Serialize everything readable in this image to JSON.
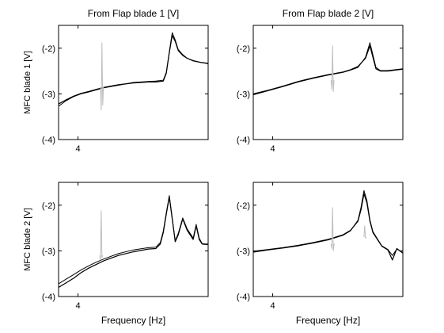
{
  "figure": {
    "background": "#ffffff",
    "series_colors": {
      "measured": "#000000",
      "model": "#000000",
      "reference": "#bdbdbd"
    }
  },
  "chart_data": [
    {
      "type": "line",
      "title": "From Flap blade 1 [V]",
      "xlabel": "",
      "ylabel": "MFC blade 1 [V]",
      "ylim": [
        -4,
        -1.5
      ],
      "xlim": [
        0,
        10
      ],
      "yticks": [
        {
          "v": -2,
          "label": "(-2)"
        },
        {
          "v": -3,
          "label": "(-3)"
        },
        {
          "v": -4,
          "label": "(-4)"
        }
      ],
      "xticks": [
        {
          "v": 1.3,
          "label": "4"
        }
      ],
      "grid": false,
      "series": [
        {
          "color": "#000000",
          "width": 1.2,
          "x": [
            0,
            0.5,
            1,
            1.5,
            2,
            3,
            4,
            5,
            6,
            6.5,
            7,
            7.2,
            7.4,
            7.6,
            7.8,
            8,
            8.3,
            8.6,
            9,
            9.5,
            10
          ],
          "y": [
            -3.22,
            -3.13,
            -3.05,
            -2.99,
            -2.95,
            -2.86,
            -2.8,
            -2.76,
            -2.74,
            -2.74,
            -2.72,
            -2.55,
            -2.1,
            -1.72,
            -1.85,
            -2.05,
            -2.16,
            -2.22,
            -2.27,
            -2.31,
            -2.33
          ]
        },
        {
          "color": "#000000",
          "width": 1,
          "x": [
            0,
            0.5,
            1,
            1.5,
            2,
            3,
            4,
            5,
            6,
            6.5,
            7,
            7.2,
            7.4,
            7.6,
            7.8,
            8,
            8.3,
            8.6,
            9,
            9.5,
            10
          ],
          "y": [
            -3.27,
            -3.15,
            -3.06,
            -3.0,
            -2.96,
            -2.87,
            -2.81,
            -2.75,
            -2.73,
            -2.72,
            -2.7,
            -2.53,
            -2.08,
            -1.66,
            -1.82,
            -2.03,
            -2.14,
            -2.22,
            -2.28,
            -2.31,
            -2.34
          ]
        },
        {
          "color": "#bdbdbd",
          "width": 1,
          "x": [
            2.8,
            2.85,
            2.9,
            2.95,
            3.0
          ],
          "y": [
            -2.85,
            -3.35,
            -1.88,
            -3.25,
            -2.85
          ]
        }
      ]
    },
    {
      "type": "line",
      "title": "From Flap blade 2 [V]",
      "xlabel": "",
      "ylabel": "",
      "ylim": [
        -4,
        -1.5
      ],
      "xlim": [
        0,
        10
      ],
      "yticks": [
        {
          "v": -2,
          "label": "(-2)"
        },
        {
          "v": -3,
          "label": "(-3)"
        },
        {
          "v": -4,
          "label": "(-4)"
        }
      ],
      "xticks": [
        {
          "v": 1.3,
          "label": "4"
        }
      ],
      "grid": false,
      "series": [
        {
          "color": "#000000",
          "width": 1.2,
          "x": [
            0,
            1,
            2,
            3,
            4,
            5,
            6,
            6.5,
            7,
            7.5,
            7.8,
            8,
            8.2,
            8.5,
            9,
            9.5,
            10
          ],
          "y": [
            -3.0,
            -2.92,
            -2.83,
            -2.73,
            -2.65,
            -2.58,
            -2.52,
            -2.47,
            -2.4,
            -2.22,
            -1.95,
            -2.2,
            -2.45,
            -2.5,
            -2.5,
            -2.48,
            -2.46
          ]
        },
        {
          "color": "#000000",
          "width": 1,
          "x": [
            0,
            1,
            2,
            3,
            4,
            5,
            6,
            6.5,
            7,
            7.5,
            7.8,
            8,
            8.2,
            8.5,
            9,
            9.5,
            10
          ],
          "y": [
            -3.02,
            -2.93,
            -2.84,
            -2.74,
            -2.66,
            -2.59,
            -2.53,
            -2.48,
            -2.42,
            -2.2,
            -1.88,
            -2.15,
            -2.42,
            -2.49,
            -2.49,
            -2.47,
            -2.45
          ]
        },
        {
          "color": "#bdbdbd",
          "width": 1,
          "x": [
            5.2,
            5.25,
            5.3,
            5.35,
            5.4
          ],
          "y": [
            -2.7,
            -2.9,
            -1.95,
            -2.95,
            -2.7
          ]
        }
      ]
    },
    {
      "type": "line",
      "title": "",
      "xlabel": "Frequency [Hz]",
      "ylabel": "MFC blade 2 [V]",
      "ylim": [
        -4,
        -1.5
      ],
      "xlim": [
        0,
        10
      ],
      "yticks": [
        {
          "v": -2,
          "label": "(-2)"
        },
        {
          "v": -3,
          "label": "(-3)"
        },
        {
          "v": -4,
          "label": "(-4)"
        }
      ],
      "xticks": [
        {
          "v": 1.3,
          "label": "4"
        }
      ],
      "grid": false,
      "series": [
        {
          "color": "#000000",
          "width": 1.2,
          "x": [
            0,
            0.5,
            1,
            1.5,
            2,
            2.5,
            3,
            4,
            5,
            6,
            6.5,
            6.8,
            7,
            7.2,
            7.4,
            7.6,
            7.8,
            8,
            8.3,
            8.6,
            9,
            9.2,
            9.4,
            9.6,
            9.8,
            10
          ],
          "y": [
            -3.8,
            -3.7,
            -3.6,
            -3.48,
            -3.38,
            -3.3,
            -3.22,
            -3.1,
            -3.02,
            -2.96,
            -2.95,
            -2.85,
            -2.6,
            -2.2,
            -1.82,
            -2.3,
            -2.8,
            -2.65,
            -2.3,
            -2.55,
            -2.75,
            -2.45,
            -2.75,
            -2.85,
            -2.86,
            -2.86
          ]
        },
        {
          "color": "#000000",
          "width": 1,
          "x": [
            0,
            0.5,
            1,
            1.5,
            2,
            2.5,
            3,
            4,
            5,
            6,
            6.5,
            6.8,
            7,
            7.2,
            7.4,
            7.6,
            7.8,
            8,
            8.3,
            8.6,
            9,
            9.2,
            9.4,
            9.6,
            9.8,
            10
          ],
          "y": [
            -3.72,
            -3.62,
            -3.52,
            -3.42,
            -3.33,
            -3.25,
            -3.18,
            -3.06,
            -2.98,
            -2.93,
            -2.92,
            -2.82,
            -2.57,
            -2.17,
            -1.79,
            -2.28,
            -2.78,
            -2.62,
            -2.28,
            -2.52,
            -2.72,
            -2.42,
            -2.72,
            -2.84,
            -2.85,
            -2.85
          ]
        },
        {
          "color": "#bdbdbd",
          "width": 1,
          "x": [
            2.75,
            2.8,
            2.85,
            2.9,
            2.95
          ],
          "y": [
            -3.1,
            -3.2,
            -2.12,
            -3.15,
            -3.1
          ]
        }
      ]
    },
    {
      "type": "line",
      "title": "",
      "xlabel": "Frequency [Hz]",
      "ylabel": "",
      "ylim": [
        -4,
        -1.5
      ],
      "xlim": [
        0,
        10
      ],
      "yticks": [
        {
          "v": -2,
          "label": "(-2)"
        },
        {
          "v": -3,
          "label": "(-3)"
        },
        {
          "v": -4,
          "label": "(-4)"
        }
      ],
      "xticks": [
        {
          "v": 1.3,
          "label": "4"
        }
      ],
      "grid": false,
      "series": [
        {
          "color": "#000000",
          "width": 1.2,
          "x": [
            0,
            1,
            2,
            3,
            4,
            5,
            6,
            6.5,
            7,
            7.2,
            7.4,
            7.6,
            7.8,
            8,
            8.3,
            8.6,
            9,
            9.3,
            9.6,
            10
          ],
          "y": [
            -3.01,
            -2.97,
            -2.93,
            -2.88,
            -2.82,
            -2.75,
            -2.65,
            -2.55,
            -2.35,
            -2.1,
            -1.75,
            -1.95,
            -2.35,
            -2.6,
            -2.75,
            -2.9,
            -2.98,
            -3.2,
            -2.95,
            -3.05
          ]
        },
        {
          "color": "#000000",
          "width": 1,
          "x": [
            0,
            1,
            2,
            3,
            4,
            5,
            6,
            6.5,
            7,
            7.2,
            7.4,
            7.6,
            7.8,
            8,
            8.3,
            8.6,
            9,
            9.3,
            9.6,
            10
          ],
          "y": [
            -3.03,
            -2.98,
            -2.94,
            -2.89,
            -2.83,
            -2.76,
            -2.66,
            -2.56,
            -2.33,
            -2.05,
            -1.68,
            -1.9,
            -2.32,
            -2.58,
            -2.74,
            -2.89,
            -2.97,
            -3.1,
            -2.96,
            -3.04
          ]
        },
        {
          "color": "#bdbdbd",
          "width": 1,
          "x": [
            5.2,
            5.25,
            5.3,
            5.35,
            5.4,
            5.45
          ],
          "y": [
            -2.85,
            -2.95,
            -2.05,
            -3.0,
            -2.85,
            -2.85
          ]
        },
        {
          "color": "#bdbdbd",
          "width": 1,
          "x": [
            7.4,
            7.45,
            7.5,
            7.55
          ],
          "y": [
            -2.7,
            -2.45,
            -2.72,
            -2.7
          ]
        }
      ]
    }
  ]
}
